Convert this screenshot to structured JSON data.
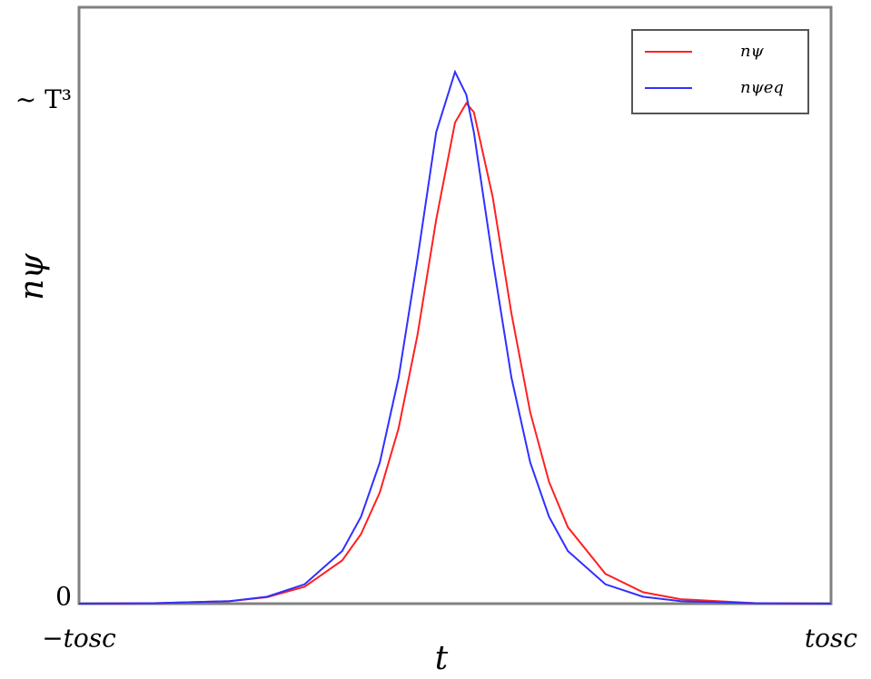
{
  "chart_data": {
    "type": "line",
    "xlabel": "t",
    "ylabel": "nψ",
    "x": [
      -1,
      -0.8,
      -0.6,
      -0.5,
      -0.4,
      -0.3,
      -0.25,
      -0.2,
      -0.15,
      -0.1,
      -0.05,
      0,
      0.03,
      0.05,
      0.1,
      0.15,
      0.2,
      0.25,
      0.3,
      0.4,
      0.5,
      0.6,
      0.8,
      1
    ],
    "series": [
      {
        "name": "nψ",
        "color": "#ff2020",
        "values": [
          0,
          0.001,
          0.005,
          0.013,
          0.034,
          0.087,
          0.14,
          0.224,
          0.353,
          0.54,
          0.773,
          0.968,
          1.007,
          0.989,
          0.819,
          0.584,
          0.385,
          0.245,
          0.154,
          0.06,
          0.023,
          0.009,
          0.001,
          0
        ]
      },
      {
        "name": "nψeq",
        "color": "#3030ff",
        "values": [
          0,
          0.001,
          0.005,
          0.014,
          0.039,
          0.106,
          0.175,
          0.284,
          0.455,
          0.693,
          0.949,
          1.07,
          1.024,
          0.949,
          0.693,
          0.455,
          0.284,
          0.175,
          0.106,
          0.039,
          0.014,
          0.005,
          0.001,
          0
        ]
      }
    ],
    "xlim": [
      -1,
      1
    ],
    "ylim": [
      0,
      1.2
    ],
    "xticks": [
      {
        "value": -1,
        "label": "−tosc"
      },
      {
        "value": 1,
        "label": "tosc"
      }
    ],
    "yticks": [
      0,
      {
        "value": 1,
        "label": "~ T³"
      }
    ],
    "grid": false,
    "legend": "upper right"
  }
}
